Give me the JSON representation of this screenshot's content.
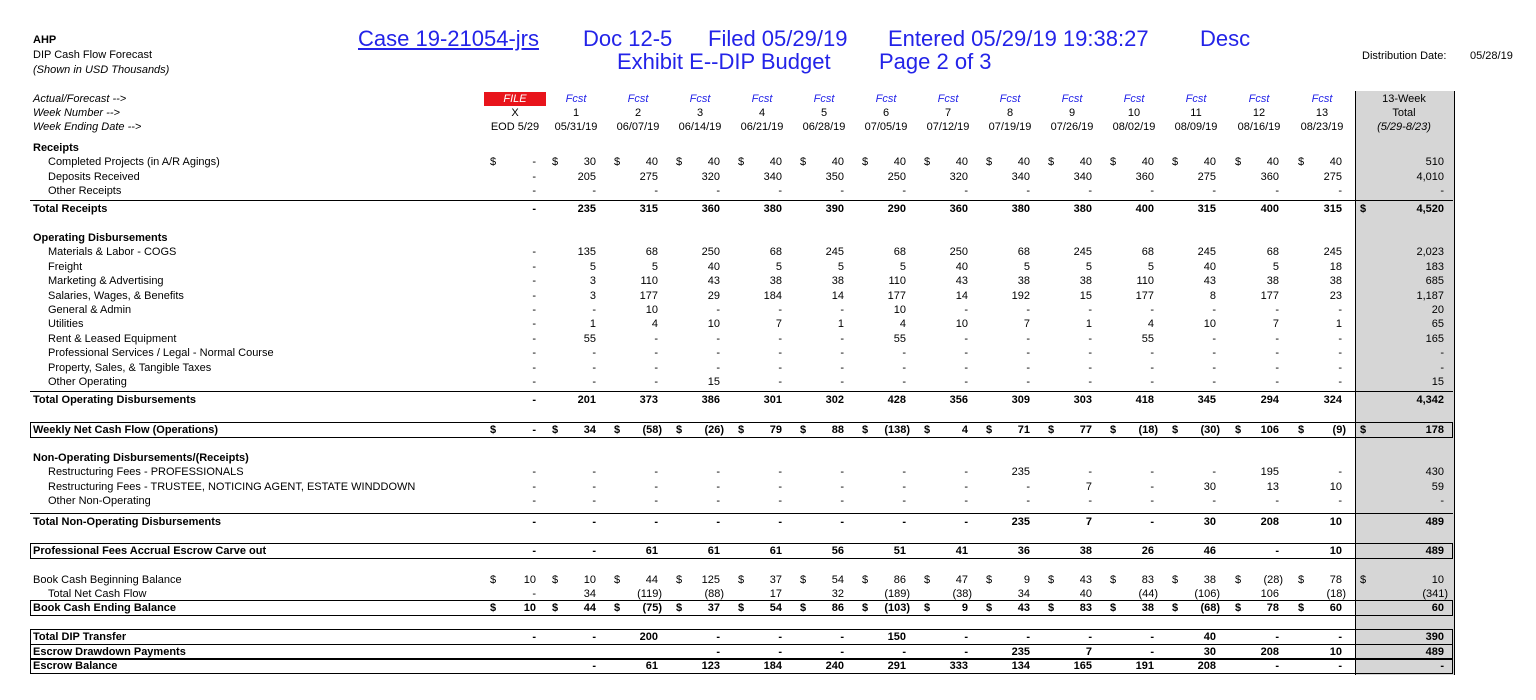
{
  "header": {
    "company": "AHP",
    "title": "DIP Cash Flow Forecast",
    "units": "(Shown in USD Thousands)",
    "distribution_label": "Distribution Date:",
    "distribution_date": "05/28/19"
  },
  "stamp": {
    "case": "Case 19-21054-jrs",
    "doc": "Doc 12-5",
    "filed": "Filed 05/29/19",
    "entered": "Entered 05/29/19 19:38:27",
    "desc": "Desc",
    "exhibit": "Exhibit E--DIP Budget",
    "page": "Page 2 of 3"
  },
  "table": {
    "currency": "$",
    "header_rows": [
      {
        "label": "Actual/Forecast -->",
        "cells": [
          "FILE",
          "Fcst",
          "Fcst",
          "Fcst",
          "Fcst",
          "Fcst",
          "Fcst",
          "Fcst",
          "Fcst",
          "Fcst",
          "Fcst",
          "Fcst",
          "Fcst",
          "Fcst",
          "13-Week"
        ]
      },
      {
        "label": "Week Number -->",
        "cells": [
          "X",
          "1",
          "2",
          "3",
          "4",
          "5",
          "6",
          "7",
          "8",
          "9",
          "10",
          "11",
          "12",
          "13",
          "Total"
        ]
      },
      {
        "label": "Week Ending Date -->",
        "cells": [
          "EOD 5/29",
          "05/31/19",
          "06/07/19",
          "06/14/19",
          "06/21/19",
          "06/28/19",
          "07/05/19",
          "07/12/19",
          "07/19/19",
          "07/26/19",
          "08/02/19",
          "08/09/19",
          "08/16/19",
          "08/23/19",
          "(5/29-8/23)"
        ]
      }
    ],
    "rows": [
      {
        "label": "Receipts",
        "style": "section"
      },
      {
        "label": "Completed Projects (in A/R Agings)",
        "style": "item",
        "dollar": "weeks",
        "cells": [
          "-",
          "30",
          "40",
          "40",
          "40",
          "40",
          "40",
          "40",
          "40",
          "40",
          "40",
          "40",
          "40",
          "40",
          "510"
        ]
      },
      {
        "label": "Deposits Received",
        "style": "item",
        "cells": [
          "-",
          "205",
          "275",
          "320",
          "340",
          "350",
          "250",
          "320",
          "340",
          "340",
          "360",
          "275",
          "360",
          "275",
          "4,010"
        ]
      },
      {
        "label": "Other Receipts",
        "style": "item",
        "cells": [
          "-",
          "-",
          "-",
          "-",
          "-",
          "-",
          "-",
          "-",
          "-",
          "-",
          "-",
          "-",
          "-",
          "-",
          "-"
        ]
      },
      {
        "label": "Total Receipts",
        "style": "total",
        "dollar": "total",
        "cells": [
          "-",
          "235",
          "315",
          "360",
          "380",
          "390",
          "290",
          "360",
          "380",
          "380",
          "400",
          "315",
          "400",
          "315",
          "4,520"
        ]
      },
      {
        "label": "Operating Disbursements",
        "style": "section"
      },
      {
        "label": "Materials & Labor - COGS",
        "style": "item",
        "cells": [
          "-",
          "135",
          "68",
          "250",
          "68",
          "245",
          "68",
          "250",
          "68",
          "245",
          "68",
          "245",
          "68",
          "245",
          "2,023"
        ]
      },
      {
        "label": "Freight",
        "style": "item",
        "cells": [
          "-",
          "5",
          "5",
          "40",
          "5",
          "5",
          "5",
          "40",
          "5",
          "5",
          "5",
          "40",
          "5",
          "18",
          "183"
        ]
      },
      {
        "label": "Marketing & Advertising",
        "style": "item",
        "cells": [
          "-",
          "3",
          "110",
          "43",
          "38",
          "38",
          "110",
          "43",
          "38",
          "38",
          "110",
          "43",
          "38",
          "38",
          "685"
        ]
      },
      {
        "label": "Salaries, Wages, & Benefits",
        "style": "item",
        "cells": [
          "-",
          "3",
          "177",
          "29",
          "184",
          "14",
          "177",
          "14",
          "192",
          "15",
          "177",
          "8",
          "177",
          "23",
          "1,187"
        ]
      },
      {
        "label": "General & Admin",
        "style": "item",
        "cells": [
          "-",
          "-",
          "10",
          "-",
          "-",
          "-",
          "10",
          "-",
          "-",
          "-",
          "-",
          "-",
          "-",
          "-",
          "20"
        ]
      },
      {
        "label": "Utilities",
        "style": "item",
        "cells": [
          "-",
          "1",
          "4",
          "10",
          "7",
          "1",
          "4",
          "10",
          "7",
          "1",
          "4",
          "10",
          "7",
          "1",
          "65"
        ]
      },
      {
        "label": "Rent & Leased Equipment",
        "style": "item",
        "cells": [
          "-",
          "55",
          "-",
          "-",
          "-",
          "-",
          "55",
          "-",
          "-",
          "-",
          "55",
          "-",
          "-",
          "-",
          "165"
        ]
      },
      {
        "label": "Professional Services / Legal - Normal Course",
        "style": "item",
        "cells": [
          "-",
          "-",
          "-",
          "-",
          "-",
          "-",
          "-",
          "-",
          "-",
          "-",
          "-",
          "-",
          "-",
          "-",
          "-"
        ]
      },
      {
        "label": "Property, Sales, & Tangible Taxes",
        "style": "item",
        "cells": [
          "-",
          "-",
          "-",
          "-",
          "-",
          "-",
          "-",
          "-",
          "-",
          "-",
          "-",
          "-",
          "-",
          "-",
          "-"
        ]
      },
      {
        "label": "Other Operating",
        "style": "item",
        "cells": [
          "-",
          "-",
          "-",
          "15",
          "-",
          "-",
          "-",
          "-",
          "-",
          "-",
          "-",
          "-",
          "-",
          "-",
          "15"
        ]
      },
      {
        "label": "Total Operating Disbursements",
        "style": "total",
        "cells": [
          "-",
          "201",
          "373",
          "386",
          "301",
          "302",
          "428",
          "356",
          "309",
          "303",
          "418",
          "345",
          "294",
          "324",
          "4,342"
        ]
      },
      {
        "label": "Weekly Net Cash Flow (Operations)",
        "style": "boxed",
        "dollar": "all",
        "cells": [
          "-",
          "34",
          "(58)",
          "(26)",
          "79",
          "88",
          "(138)",
          "4",
          "71",
          "77",
          "(18)",
          "(30)",
          "106",
          "(9)",
          "178"
        ]
      },
      {
        "label": "Non-Operating Disbursements/(Receipts)",
        "style": "section"
      },
      {
        "label": "Restructuring Fees - PROFESSIONALS",
        "style": "item",
        "cells": [
          "-",
          "-",
          "-",
          "-",
          "-",
          "-",
          "-",
          "-",
          "235",
          "-",
          "-",
          "-",
          "195",
          "-",
          "430"
        ]
      },
      {
        "label": "Restructuring Fees - TRUSTEE, NOTICING AGENT, ESTATE WINDDOWN",
        "style": "item",
        "cells": [
          "-",
          "-",
          "-",
          "-",
          "-",
          "-",
          "-",
          "-",
          "-",
          "7",
          "-",
          "30",
          "13",
          "10",
          "59"
        ]
      },
      {
        "label": "Other Non-Operating",
        "style": "item",
        "cells": [
          "-",
          "-",
          "-",
          "-",
          "-",
          "-",
          "-",
          "-",
          "-",
          "-",
          "-",
          "-",
          "-",
          "-",
          "-"
        ]
      },
      {
        "label": "Total Non-Operating Disbursements",
        "style": "total",
        "cells": [
          "-",
          "-",
          "-",
          "-",
          "-",
          "-",
          "-",
          "-",
          "235",
          "7",
          "-",
          "30",
          "208",
          "10",
          "489"
        ]
      },
      {
        "label": "Professional Fees Accrual Escrow Carve out",
        "style": "boxed",
        "cells": [
          "-",
          "-",
          "61",
          "61",
          "61",
          "56",
          "51",
          "41",
          "36",
          "38",
          "26",
          "46",
          "-",
          "10",
          "489"
        ]
      },
      {
        "label": "Book Cash Beginning Balance",
        "style": "plain",
        "dollar": "all",
        "cells": [
          "10",
          "10",
          "44",
          "125",
          "37",
          "54",
          "86",
          "47",
          "9",
          "43",
          "83",
          "38",
          "(28)",
          "78",
          "10"
        ]
      },
      {
        "label": "Total Net Cash Flow",
        "style": "item",
        "cells": [
          "-",
          "34",
          "(119)",
          "(88)",
          "17",
          "32",
          "(189)",
          "(38)",
          "34",
          "40",
          "(44)",
          "(106)",
          "106",
          "(18)",
          "(341)"
        ]
      },
      {
        "label": "Book Cash Ending Balance",
        "style": "boxed",
        "dollar": "weeks",
        "cells": [
          "10",
          "44",
          "(75)",
          "37",
          "54",
          "86",
          "(103)",
          "9",
          "43",
          "83",
          "38",
          "(68)",
          "78",
          "60",
          "60"
        ]
      },
      {
        "label": "Total DIP Transfer",
        "style": "boxed",
        "cells": [
          "-",
          "-",
          "200",
          "-",
          "-",
          "-",
          "150",
          "-",
          "-",
          "-",
          "-",
          "40",
          "-",
          "-",
          "390"
        ]
      },
      {
        "label": "Escrow Drawdown Payments",
        "style": "boxed",
        "cells": [
          null,
          null,
          null,
          "-",
          "-",
          "-",
          "-",
          "-",
          "235",
          "7",
          "-",
          "30",
          "208",
          "10",
          "489"
        ]
      },
      {
        "label": "Escrow Balance",
        "style": "boxed",
        "cells": [
          null,
          "-",
          "61",
          "123",
          "184",
          "240",
          "291",
          "333",
          "134",
          "165",
          "191",
          "208",
          "-",
          "-",
          "-"
        ]
      }
    ]
  }
}
